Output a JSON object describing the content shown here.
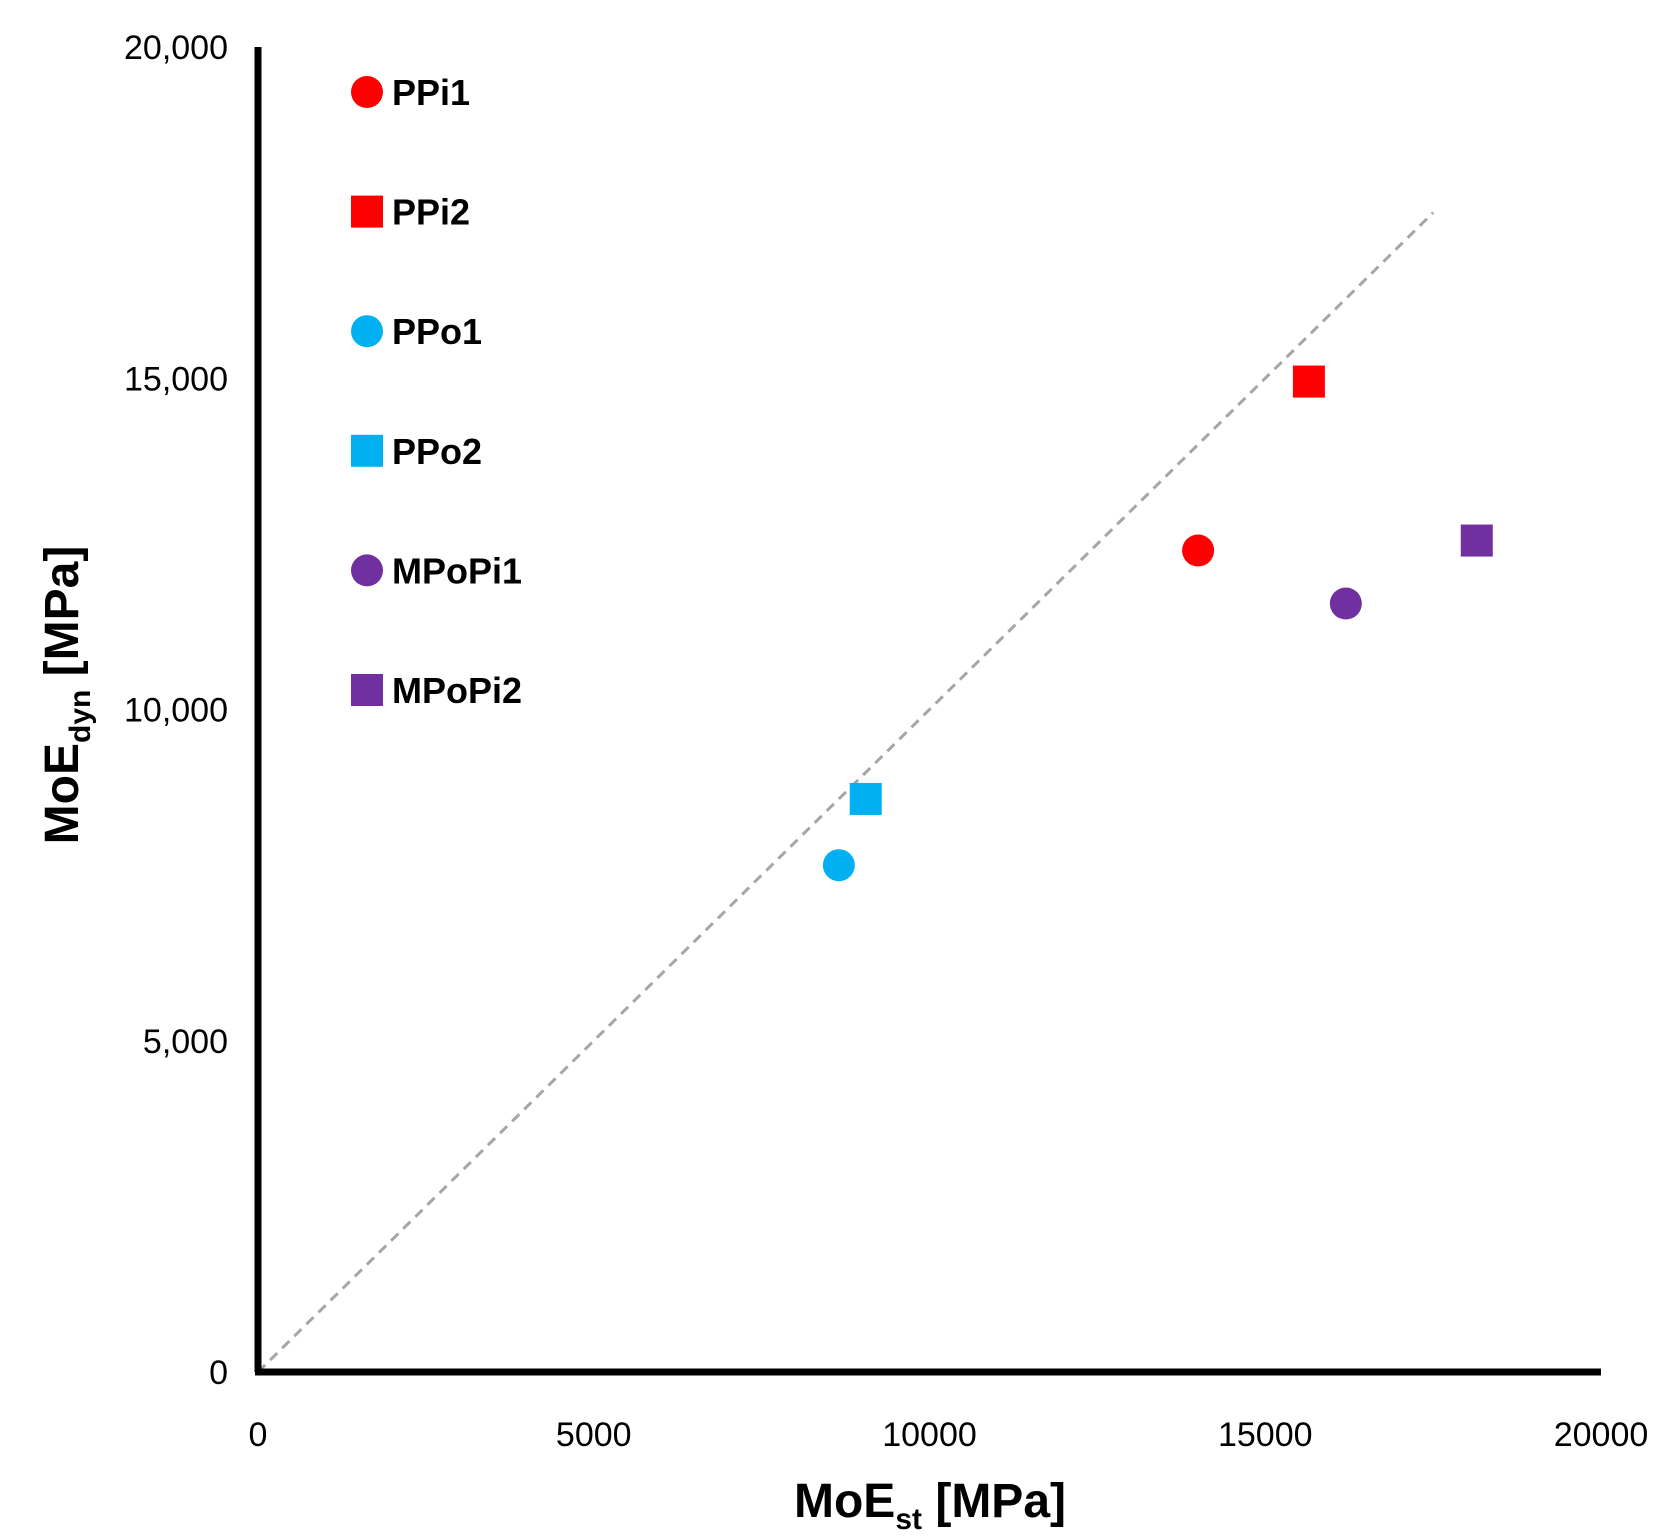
{
  "chart_data": {
    "type": "scatter",
    "title": "",
    "xlabel": {
      "main": "MoE",
      "sub": "st",
      "unit": " [MPa]"
    },
    "ylabel": {
      "main": "MoE",
      "sub": "dyn",
      "unit": " [MPa]"
    },
    "xlim": [
      0,
      20000
    ],
    "ylim": [
      0,
      20000
    ],
    "x_ticks": [
      0,
      5000,
      10000,
      15000,
      20000
    ],
    "x_tick_labels": [
      "0",
      "5000",
      "10000",
      "15000",
      "20000"
    ],
    "y_ticks": [
      0,
      5000,
      10000,
      15000,
      20000
    ],
    "y_tick_labels": [
      "0",
      "5,000",
      "10,000",
      "15,000",
      "20,000"
    ],
    "grid": false,
    "legend_position": "top-left",
    "reference_line": {
      "from": [
        0,
        0
      ],
      "to": [
        17500,
        17500
      ],
      "style": "dashed",
      "color": "#a6a6a6"
    },
    "series": [
      {
        "name": "PPi1",
        "marker": "circle",
        "color": "#ff0000",
        "points": [
          [
            14000,
            12400
          ]
        ]
      },
      {
        "name": "PPi2",
        "marker": "square",
        "color": "#ff0000",
        "points": [
          [
            15650,
            14950
          ]
        ]
      },
      {
        "name": "PPo1",
        "marker": "circle",
        "color": "#00b0f0",
        "points": [
          [
            8650,
            7650
          ]
        ]
      },
      {
        "name": "PPo2",
        "marker": "square",
        "color": "#00b0f0",
        "points": [
          [
            9050,
            8650
          ]
        ]
      },
      {
        "name": "MPoPi1",
        "marker": "circle",
        "color": "#7030a0",
        "points": [
          [
            16200,
            11600
          ]
        ]
      },
      {
        "name": "MPoPi2",
        "marker": "square",
        "color": "#7030a0",
        "points": [
          [
            18150,
            12550
          ]
        ]
      }
    ]
  }
}
